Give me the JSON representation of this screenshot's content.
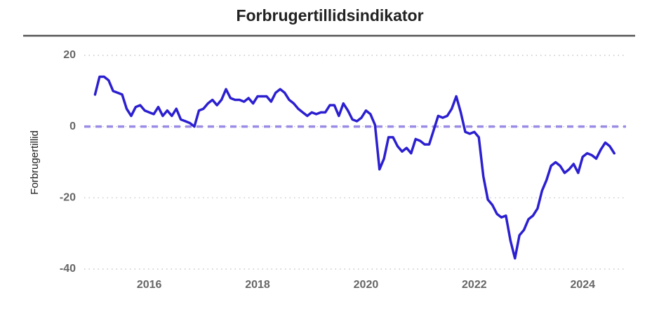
{
  "chart_data": {
    "type": "line",
    "title": "Forbrugertillidsindikator",
    "ylabel": "Forbrugertillid",
    "x": [
      2015,
      2015.083,
      2015.167,
      2015.25,
      2015.333,
      2015.417,
      2015.5,
      2015.583,
      2015.667,
      2015.75,
      2015.833,
      2015.917,
      2016,
      2016.083,
      2016.167,
      2016.25,
      2016.333,
      2016.417,
      2016.5,
      2016.583,
      2016.667,
      2016.75,
      2016.833,
      2016.917,
      2017,
      2017.083,
      2017.167,
      2017.25,
      2017.333,
      2017.417,
      2017.5,
      2017.583,
      2017.667,
      2017.75,
      2017.833,
      2017.917,
      2018,
      2018.083,
      2018.167,
      2018.25,
      2018.333,
      2018.417,
      2018.5,
      2018.583,
      2018.667,
      2018.75,
      2018.833,
      2018.917,
      2019,
      2019.083,
      2019.167,
      2019.25,
      2019.333,
      2019.417,
      2019.5,
      2019.583,
      2019.667,
      2019.75,
      2019.833,
      2019.917,
      2020,
      2020.083,
      2020.167,
      2020.25,
      2020.333,
      2020.417,
      2020.5,
      2020.583,
      2020.667,
      2020.75,
      2020.833,
      2020.917,
      2021,
      2021.083,
      2021.167,
      2021.25,
      2021.333,
      2021.417,
      2021.5,
      2021.583,
      2021.667,
      2021.75,
      2021.833,
      2021.917,
      2022,
      2022.083,
      2022.167,
      2022.25,
      2022.333,
      2022.417,
      2022.5,
      2022.583,
      2022.667,
      2022.75,
      2022.833,
      2022.917,
      2023,
      2023.083,
      2023.167,
      2023.25,
      2023.333,
      2023.417,
      2023.5,
      2023.583,
      2023.667,
      2023.75,
      2023.833,
      2023.917,
      2024,
      2024.083,
      2024.167,
      2024.25,
      2024.333,
      2024.417,
      2024.5,
      2024.583
    ],
    "series": [
      {
        "color": "#2b1fd0",
        "values": [
          9,
          14,
          14,
          13,
          10,
          9.5,
          9,
          5,
          3,
          5.5,
          6,
          4.5,
          4,
          3.5,
          5.5,
          3,
          4.5,
          3,
          5,
          2,
          1.5,
          1,
          0,
          4.5,
          5,
          6.5,
          7.5,
          6,
          7.5,
          10.5,
          8,
          7.5,
          7.5,
          7,
          8,
          6.5,
          8.5,
          8.5,
          8.5,
          7,
          9.5,
          10.5,
          9.5,
          7.5,
          6.5,
          5,
          4,
          3,
          4,
          3.5,
          4,
          4,
          6,
          6,
          3,
          6.5,
          4.5,
          2,
          1.5,
          2.5,
          4.5,
          3.5,
          0.5,
          -12,
          -9,
          -3,
          -3,
          -5.5,
          -7,
          -6,
          -7.5,
          -3.5,
          -4,
          -5,
          -5,
          -1,
          3,
          2.5,
          3,
          5,
          8.5,
          4,
          -1.5,
          -2,
          -1.5,
          -3,
          -14,
          -20.5,
          -22,
          -24.5,
          -25.5,
          -25,
          -32,
          -37,
          -30.5,
          -29,
          -26,
          -25,
          -23,
          -18,
          -15,
          -11,
          -10,
          -11,
          -13,
          -12,
          -10.5,
          -13,
          -8.5,
          -7.5,
          -8,
          -9,
          -6.5,
          -4.5,
          -5.5,
          -7.5
        ]
      }
    ],
    "xlim": [
      2014.8,
      2024.8
    ],
    "xticks": [
      2016,
      2018,
      2020,
      2022,
      2024
    ],
    "ylim": [
      -40,
      20
    ],
    "yticks": [
      -40,
      -20,
      0,
      20
    ],
    "grid": true,
    "reference_line": {
      "value": 0,
      "color": "#9b8be6"
    }
  }
}
